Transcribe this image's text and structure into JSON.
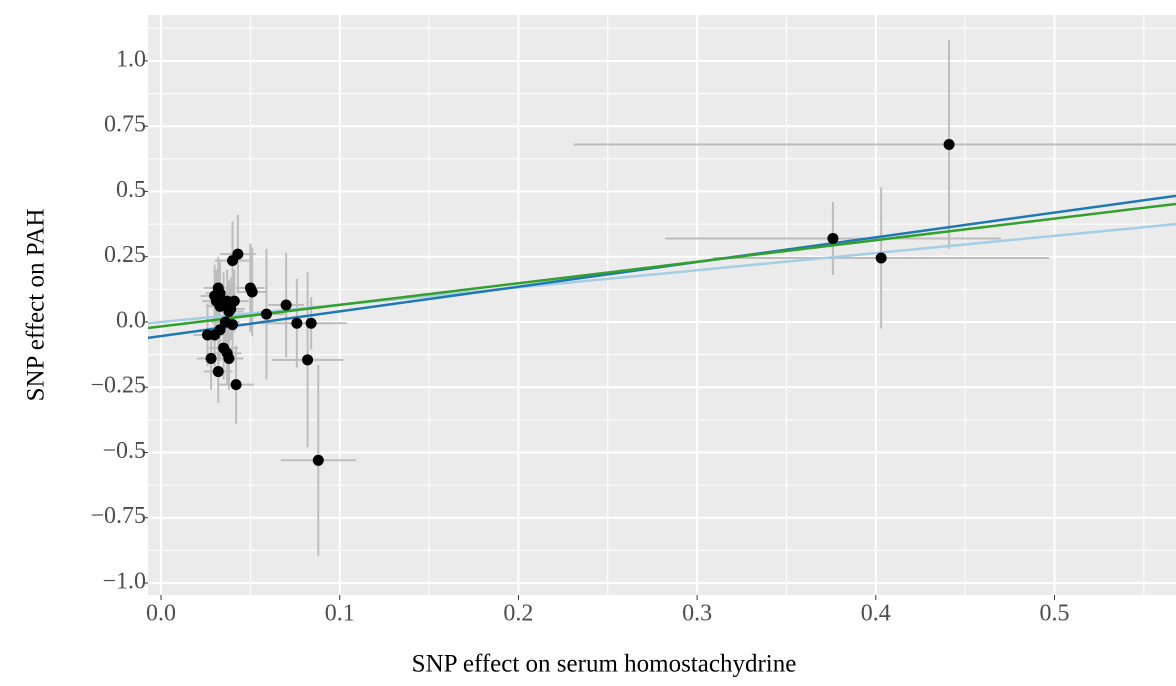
{
  "chart_data": {
    "type": "scatter",
    "x_label": "SNP effect on serum homostachydrine",
    "y_label": "SNP effect on PAH",
    "xlim": [
      -0.0073,
      0.568
    ],
    "ylim": [
      -1.046,
      1.176
    ],
    "xticks": [
      {
        "value": 0,
        "label": "0.0"
      },
      0.1,
      0.2,
      0.3,
      0.4,
      0.5
    ],
    "yticks": [
      {
        "value": -1,
        "label": "−1.0"
      },
      {
        "value": -0.75,
        "label": "−0.75"
      },
      {
        "value": -0.5,
        "label": "−0.5"
      },
      {
        "value": -0.25,
        "label": "−0.25"
      },
      {
        "value": 0,
        "label": "0.0"
      },
      0.25,
      0.5,
      0.75,
      {
        "value": 1,
        "label": "1.0"
      }
    ],
    "x_minor_ticks": [
      0.05,
      0.15,
      0.25,
      0.35,
      0.45,
      0.55
    ],
    "y_minor_ticks": [
      -0.875,
      -0.625,
      -0.375,
      -0.125,
      0.125,
      0.375,
      0.625,
      0.875,
      1.125
    ],
    "grid": true,
    "point_color": "#000000",
    "error_color": "#bdbdbd",
    "x": [
      0.441,
      0.376,
      0.403,
      0.088,
      0.082,
      0.076,
      0.084,
      0.07,
      0.059,
      0.05,
      0.051,
      0.043,
      0.04,
      0.042,
      0.032,
      0.028,
      0.038,
      0.026,
      0.03,
      0.033,
      0.035,
      0.037,
      0.04,
      0.036,
      0.03,
      0.031,
      0.032,
      0.033,
      0.035,
      0.037,
      0.041,
      0.038,
      0.033,
      0.039
    ],
    "y": [
      0.68,
      0.32,
      0.245,
      -0.53,
      -0.145,
      -0.005,
      -0.005,
      0.065,
      0.03,
      0.13,
      0.115,
      0.26,
      0.235,
      -0.24,
      -0.19,
      -0.14,
      -0.14,
      -0.05,
      -0.05,
      -0.03,
      -0.1,
      -0.12,
      -0.01,
      0.0,
      0.1,
      0.08,
      0.13,
      0.11,
      0.07,
      0.08,
      0.08,
      0.04,
      0.06,
      0.05
    ],
    "x_err": [
      0.21,
      0.094,
      0.094,
      0.021,
      0.02,
      0.02,
      0.02,
      0.01,
      0.01,
      0.008,
      0.008,
      0.01,
      0.01,
      0.01,
      0.008,
      0.008,
      0.008,
      0.008,
      0.008,
      0.008,
      0.008,
      0.008,
      0.008,
      0.008,
      0.008,
      0.008,
      0.008,
      0.008,
      0.008,
      0.008,
      0.008,
      0.008,
      0.008,
      0.008
    ],
    "y_err": [
      0.4,
      0.14,
      0.27,
      0.365,
      0.335,
      0.17,
      0.1,
      0.2,
      0.25,
      0.17,
      0.17,
      0.15,
      0.15,
      0.15,
      0.12,
      0.12,
      0.12,
      0.12,
      0.12,
      0.12,
      0.12,
      0.12,
      0.12,
      0.12,
      0.12,
      0.12,
      0.12,
      0.12,
      0.12,
      0.12,
      0.12,
      0.12,
      0.12,
      0.12
    ],
    "lines": [
      {
        "color": "#a6cee3",
        "intercept": 0,
        "slope": 0.66
      },
      {
        "color": "#1f78b4",
        "intercept": -0.054,
        "slope": 0.946
      },
      {
        "color": "#33a02c",
        "intercept": -0.017,
        "slope": 0.826
      }
    ]
  }
}
